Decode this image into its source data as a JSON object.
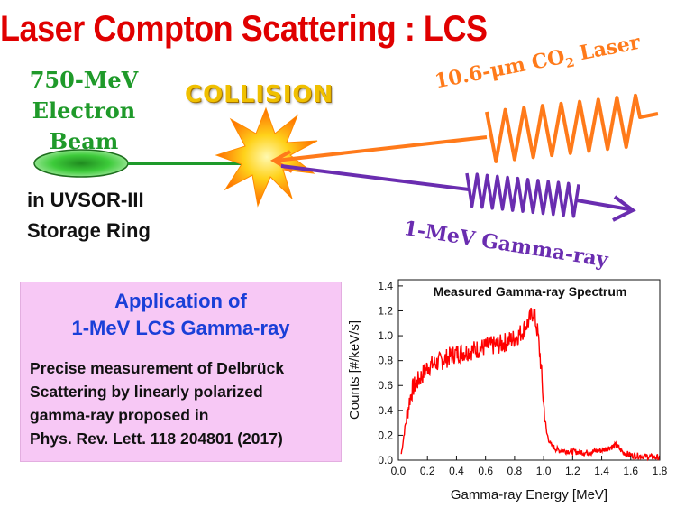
{
  "title": "Laser Compton Scattering : LCS",
  "electron_beam": {
    "line1": "750-MeV",
    "line2": "Electron",
    "line3": "Beam"
  },
  "ring": {
    "line1": "in UVSOR-III",
    "line2": "Storage Ring"
  },
  "collision": "COLLISION",
  "laser": {
    "prefix": "10.6-μm CO",
    "sub": "2",
    "suffix": " Laser"
  },
  "gamma": "1-MeV Gamma-ray",
  "application": {
    "title1": "Application of",
    "title2": "1-MeV LCS Gamma-ray",
    "lines": [
      "Precise measurement of Delbrück",
      "Scattering by linearly polarized",
      "gamma-ray proposed in",
      "Phys. Rev. Lett. 118 204801 (2017)"
    ]
  },
  "colors": {
    "title": "#e00000",
    "green": "#1f9a2a",
    "laser": "#ff7a1a",
    "gamma": "#6a2db0",
    "box": "#f7c8f5",
    "blue": "#1a3fd8",
    "spectrum": "#ff0000"
  },
  "chart_data": {
    "type": "line",
    "title": "Measured Gamma-ray Spectrum",
    "xlabel": "Gamma-ray Energy [MeV]",
    "ylabel": "Counts [#/keV/s]",
    "xlim": [
      0,
      1.8
    ],
    "ylim": [
      0,
      1.45
    ],
    "xticks": [
      "0.0",
      "0.2",
      "0.4",
      "0.6",
      "0.8",
      "1.0",
      "1.2",
      "1.4",
      "1.6",
      "1.8"
    ],
    "yticks": [
      "0.0",
      "0.2",
      "0.4",
      "0.6",
      "0.8",
      "1.0",
      "1.2",
      "1.4"
    ],
    "series": [
      {
        "name": "spectrum",
        "x": [
          0.02,
          0.05,
          0.08,
          0.1,
          0.15,
          0.2,
          0.3,
          0.4,
          0.5,
          0.6,
          0.7,
          0.8,
          0.85,
          0.9,
          0.93,
          0.96,
          0.98,
          1.0,
          1.02,
          1.05,
          1.1,
          1.2,
          1.3,
          1.4,
          1.45,
          1.5,
          1.55,
          1.6,
          1.7,
          1.8
        ],
        "y": [
          0.05,
          0.3,
          0.5,
          0.58,
          0.66,
          0.75,
          0.8,
          0.86,
          0.88,
          0.91,
          0.93,
          0.98,
          1.03,
          1.12,
          1.2,
          1.02,
          0.78,
          0.45,
          0.22,
          0.12,
          0.08,
          0.07,
          0.06,
          0.08,
          0.1,
          0.12,
          0.06,
          0.04,
          0.03,
          0.02
        ]
      }
    ]
  }
}
